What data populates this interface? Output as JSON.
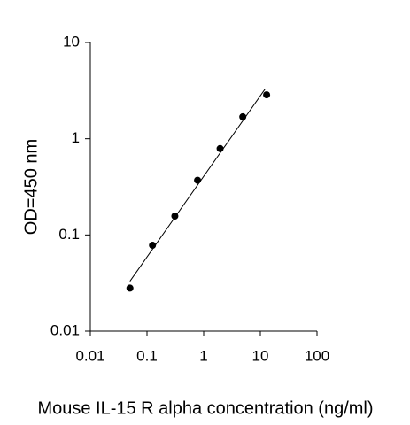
{
  "chart_data": {
    "type": "scatter",
    "x_label": "Mouse IL-15 R alpha concentration (ng/ml)",
    "y_label": "OD=450 nm",
    "x": [
      0.05,
      0.125,
      0.31,
      0.78,
      1.95,
      4.9,
      12.9
    ],
    "series": [
      {
        "color": "#000000",
        "values": [
          0.028,
          0.078,
          0.157,
          0.37,
          0.79,
          1.69,
          2.86
        ]
      }
    ],
    "fit_line": {
      "x": [
        0.05,
        12.2
      ],
      "y": [
        0.033,
        3.3
      ],
      "color": "#000000"
    },
    "xlim": [
      0.01,
      100
    ],
    "ylim": [
      0.01,
      10
    ],
    "xticks": [
      0.01,
      0.1,
      1,
      10,
      100
    ],
    "yticks": [
      0.01,
      0.1,
      1,
      10
    ],
    "x_log": true,
    "y_log": true
  }
}
